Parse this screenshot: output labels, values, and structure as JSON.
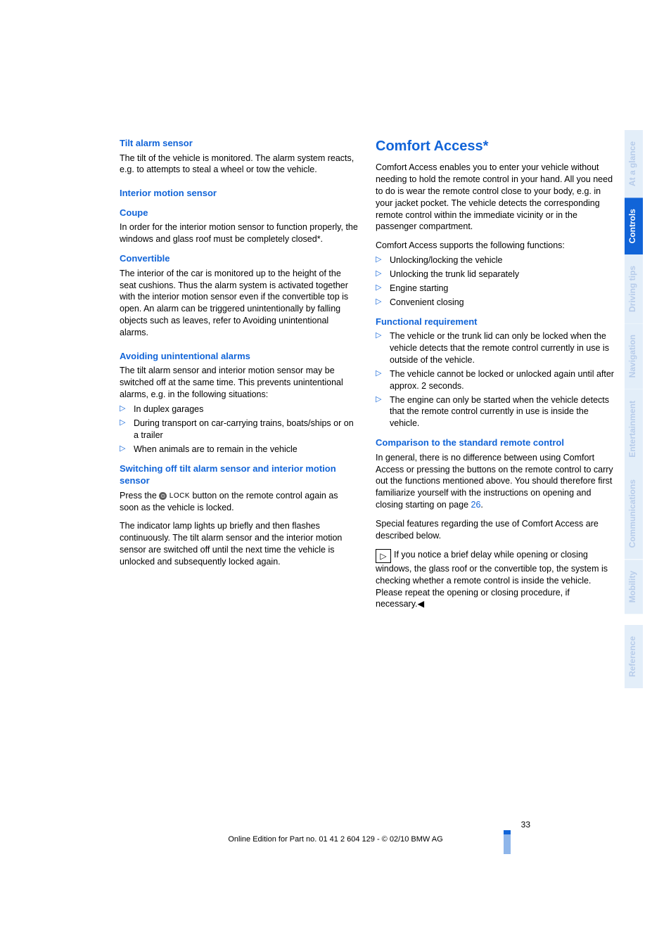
{
  "left": {
    "h1": "Tilt alarm sensor",
    "p1": "The tilt of the vehicle is monitored. The alarm system reacts, e.g. to attempts to steal a wheel or tow the vehicle.",
    "h2": "Interior motion sensor",
    "h3": "Coupe",
    "p2": "In order for the interior motion sensor to function properly, the windows and glass roof must be completely closed*.",
    "h4": "Convertible",
    "p3": "The interior of the car is monitored up to the height of the seat cushions. Thus the alarm system is activated together with the interior motion sensor even if the convertible top is open. An alarm can be triggered unintentionally by falling objects such as leaves, refer to Avoiding unintentional alarms.",
    "h5": "Avoiding unintentional alarms",
    "p4": "The tilt alarm sensor and interior motion sensor may be switched off at the same time. This prevents unintentional alarms, e.g. in the following situations:",
    "li1": "In duplex garages",
    "li2": "During transport on car-carrying trains, boats/ships or on a trailer",
    "li3": "When animals are to remain in the vehicle",
    "h6": "Switching off tilt alarm sensor and interior motion sensor",
    "p5a": "Press the ",
    "p5b": " button on the remote control again as soon as the vehicle is locked.",
    "lock": "LOCK",
    "p6": "The indicator lamp lights up briefly and then flashes continuously. The tilt alarm sensor and the interior motion sensor are switched off until the next time the vehicle is unlocked and subsequently locked again."
  },
  "right": {
    "h1": "Comfort Access*",
    "p1": "Comfort Access enables you to enter your vehicle without needing to hold the remote control in your hand. All you need to do is wear the remote control close to your body, e.g. in your jacket pocket. The vehicle detects the corresponding remote control within the immediate vicinity or in the passenger compartment.",
    "p2": "Comfort Access supports the following functions:",
    "li1": "Unlocking/locking the vehicle",
    "li2": "Unlocking the trunk lid separately",
    "li3": "Engine starting",
    "li4": "Convenient closing",
    "h2": "Functional requirement",
    "fr1": "The vehicle or the trunk lid can only be locked when the vehicle detects that the remote control currently in use is outside of the vehicle.",
    "fr2": "The vehicle cannot be locked or unlocked again until after approx. 2 seconds.",
    "fr3": "The engine can only be started when the vehicle detects that the remote control currently in use is inside the vehicle.",
    "h3": "Comparison to the standard remote control",
    "p3a": "In general, there is no difference between using Comfort Access or pressing the buttons on the remote control to carry out the functions mentioned above. You should therefore first familiarize yourself with the instructions on opening and closing starting on page ",
    "p3link": "26",
    "p3b": ".",
    "p4": "Special features regarding the use of Comfort Access are described below.",
    "note": "If you notice a brief delay while opening or closing windows, the glass roof or the convertible top, the system is checking whether a remote control is inside the vehicle. Please repeat the opening or closing procedure, if necessary.◀"
  },
  "tabs": {
    "t1": "At a glance",
    "t2": "Controls",
    "t3": "Driving tips",
    "t4": "Navigation",
    "t5": "Entertainment",
    "t6": "Communications",
    "t7": "Mobility",
    "t8": "Reference"
  },
  "footer": {
    "page": "33",
    "line": "Online Edition for Part no. 01 41 2 604 129 - © 02/10 BMW AG"
  }
}
